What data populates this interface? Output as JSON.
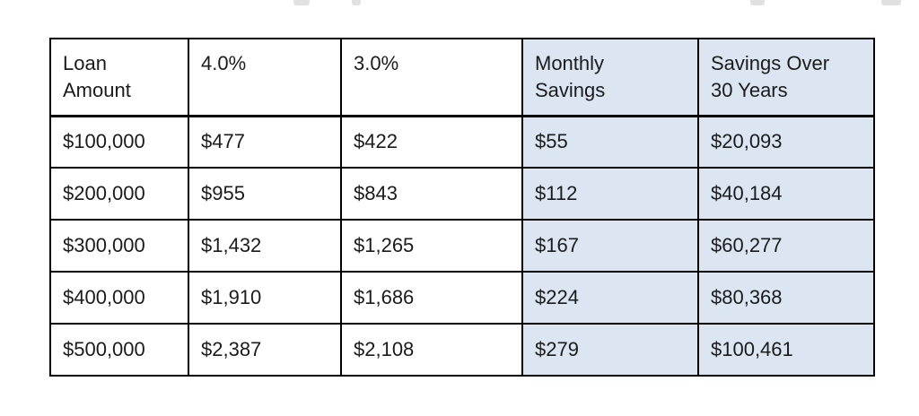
{
  "table": {
    "headers": [
      "Loan\nAmount",
      "4.0%",
      "3.0%",
      "Monthly\nSavings",
      "Savings Over\n30 Years"
    ],
    "rows": [
      [
        "$100,000",
        "$477",
        "$422",
        "$55",
        "$20,093"
      ],
      [
        "$200,000",
        "$955",
        "$843",
        "$112",
        "$40,184"
      ],
      [
        "$300,000",
        "$1,432",
        "$1,265",
        "$167",
        "$60,277"
      ],
      [
        "$400,000",
        "$1,910",
        "$1,686",
        "$224",
        "$80,368"
      ],
      [
        "$500,000",
        "$2,387",
        "$2,108",
        "$279",
        "$100,461"
      ]
    ],
    "highlighted_columns": [
      3,
      4
    ],
    "colors": {
      "highlight": "#dce6f2",
      "border": "#000000",
      "text": "#1b1b1b",
      "background": "#ffffff"
    }
  }
}
